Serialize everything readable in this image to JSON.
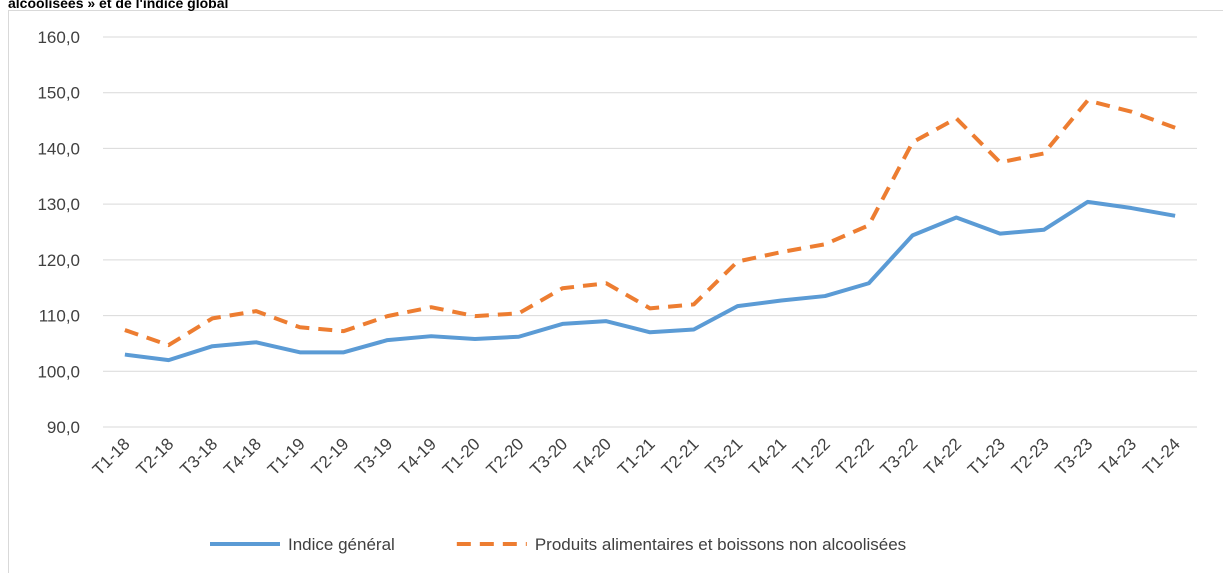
{
  "chart_data": {
    "type": "line",
    "title": "alcoolisées » et de l'indice global",
    "categories": [
      "T1-18",
      "T2-18",
      "T3-18",
      "T4-18",
      "T1-19",
      "T2-19",
      "T3-19",
      "T4-19",
      "T1-20",
      "T2-20",
      "T3-20",
      "T4-20",
      "T1-21",
      "T2-21",
      "T3-21",
      "T4-21",
      "T1-22",
      "T2-22",
      "T3-22",
      "T4-22",
      "T1-23",
      "T2-23",
      "T3-23",
      "T4-23",
      "T1-24"
    ],
    "series": [
      {
        "name": "Indice général",
        "color": "#5b9bd5",
        "line_style": "solid",
        "values": [
          103.0,
          102.0,
          104.5,
          105.2,
          103.4,
          103.4,
          105.6,
          106.3,
          105.8,
          106.2,
          108.5,
          109.0,
          107.0,
          107.5,
          111.7,
          112.7,
          113.5,
          115.8,
          124.4,
          127.6,
          124.7,
          125.4,
          130.4,
          129.3,
          127.9
        ]
      },
      {
        "name": "Produits alimentaires et boissons non alcoolisées",
        "color": "#ed7d31",
        "line_style": "dashed",
        "values": [
          107.4,
          104.7,
          109.5,
          110.8,
          107.9,
          107.2,
          109.9,
          111.5,
          109.9,
          110.4,
          114.9,
          115.8,
          111.3,
          112.0,
          119.7,
          121.4,
          122.8,
          126.2,
          141.1,
          145.4,
          137.5,
          139.1,
          148.6,
          146.6,
          143.7
        ]
      }
    ],
    "ylim": [
      90,
      160
    ],
    "yticks": [
      {
        "value": 90,
        "label": "90,0"
      },
      {
        "value": 100,
        "label": "100,0"
      },
      {
        "value": 110,
        "label": "110,0"
      },
      {
        "value": 120,
        "label": "120,0"
      },
      {
        "value": 130,
        "label": "130,0"
      },
      {
        "value": 140,
        "label": "140,0"
      },
      {
        "value": 150,
        "label": "150,0"
      },
      {
        "value": 160,
        "label": "160,0"
      }
    ],
    "grid": true,
    "legend": "bottom"
  }
}
